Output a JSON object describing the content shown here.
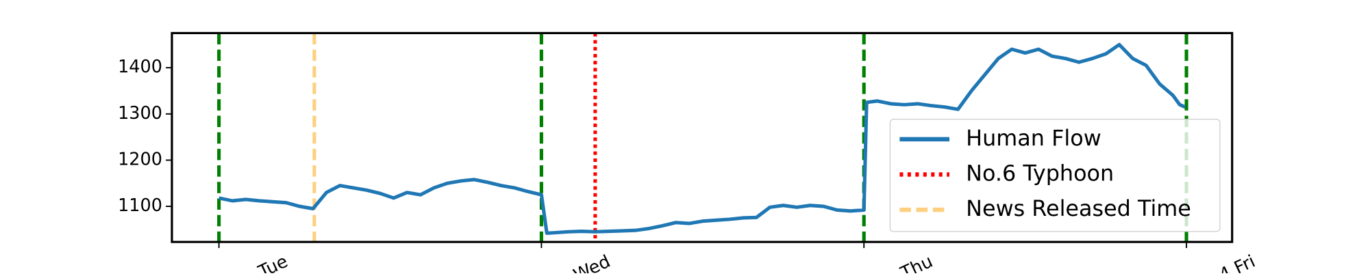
{
  "chart_data": {
    "type": "line",
    "x": [
      0,
      1,
      2,
      3,
      4,
      5,
      6,
      7,
      8,
      9,
      10,
      11,
      12,
      13,
      14,
      15,
      16,
      17,
      18,
      19,
      20,
      21,
      22,
      23,
      24,
      24.4,
      25,
      26,
      27,
      28,
      29,
      30,
      31,
      32,
      33,
      34,
      35,
      36,
      37,
      38,
      39,
      40,
      41,
      42,
      43,
      44,
      45,
      46,
      47,
      48,
      48.2,
      49,
      50,
      51,
      52,
      53,
      54,
      55,
      56,
      57,
      58,
      59,
      60,
      61,
      62,
      63,
      64,
      65,
      66,
      67,
      68,
      69,
      70,
      71,
      71.5,
      71.9
    ],
    "series": [
      {
        "name": "Human Flow",
        "color": "#1f77b4",
        "values": [
          1118,
          1112,
          1115,
          1112,
          1110,
          1108,
          1100,
          1095,
          1130,
          1145,
          1140,
          1135,
          1128,
          1118,
          1130,
          1125,
          1140,
          1150,
          1155,
          1158,
          1152,
          1145,
          1140,
          1132,
          1125,
          1042,
          1043,
          1045,
          1046,
          1045,
          1046,
          1047,
          1048,
          1052,
          1058,
          1065,
          1063,
          1068,
          1070,
          1072,
          1075,
          1076,
          1098,
          1102,
          1098,
          1102,
          1100,
          1092,
          1090,
          1092,
          1325,
          1328,
          1322,
          1320,
          1322,
          1318,
          1315,
          1310,
          1350,
          1385,
          1420,
          1440,
          1432,
          1440,
          1425,
          1420,
          1412,
          1420,
          1430,
          1450,
          1420,
          1405,
          1365,
          1340,
          1320,
          1315
        ]
      }
    ],
    "day_lines": {
      "color": "#008000",
      "x": [
        0,
        24,
        48,
        72
      ]
    },
    "events": [
      {
        "name": "No.6 Typhoon",
        "color": "#ff0000",
        "style": "dotted",
        "x": 28
      },
      {
        "name": "News Released Time",
        "color": "#fdd07f",
        "style": "dashed",
        "x": 7.1
      }
    ],
    "xlim": [
      -3.5,
      75.4
    ],
    "ylim": [
      1023,
      1475
    ],
    "xticks": [
      {
        "value": 0,
        "label": "Tue"
      },
      {
        "value": 24,
        "label": "Wed"
      },
      {
        "value": 48,
        "label": "Thu"
      },
      {
        "value": 72,
        "label": "4 Fri"
      }
    ],
    "yticks": [
      1100,
      1200,
      1300,
      1400
    ],
    "legend": "lower right"
  }
}
